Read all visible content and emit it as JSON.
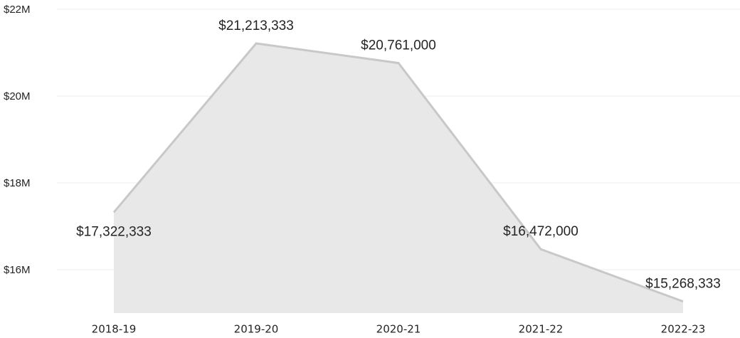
{
  "chart_data": {
    "type": "area",
    "categories": [
      "2018-19",
      "2019-20",
      "2020-21",
      "2021-22",
      "2022-23"
    ],
    "values": [
      17322333,
      21213333,
      20761000,
      16472000,
      15268333
    ],
    "value_labels": [
      "$17,322,333",
      "$21,213,333",
      "$20,761,000",
      "$16,472,000",
      "$15,268,333"
    ],
    "color": "#c8c8c8",
    "fill": "#e8e8e8",
    "ylim": [
      15000000,
      22000000
    ],
    "yticks": [
      {
        "value": 16000000,
        "label": "$16M"
      },
      {
        "value": 18000000,
        "label": "$18M"
      },
      {
        "value": 20000000,
        "label": "$20M"
      },
      {
        "value": 22000000,
        "label": "$22M"
      }
    ],
    "grid": true
  }
}
